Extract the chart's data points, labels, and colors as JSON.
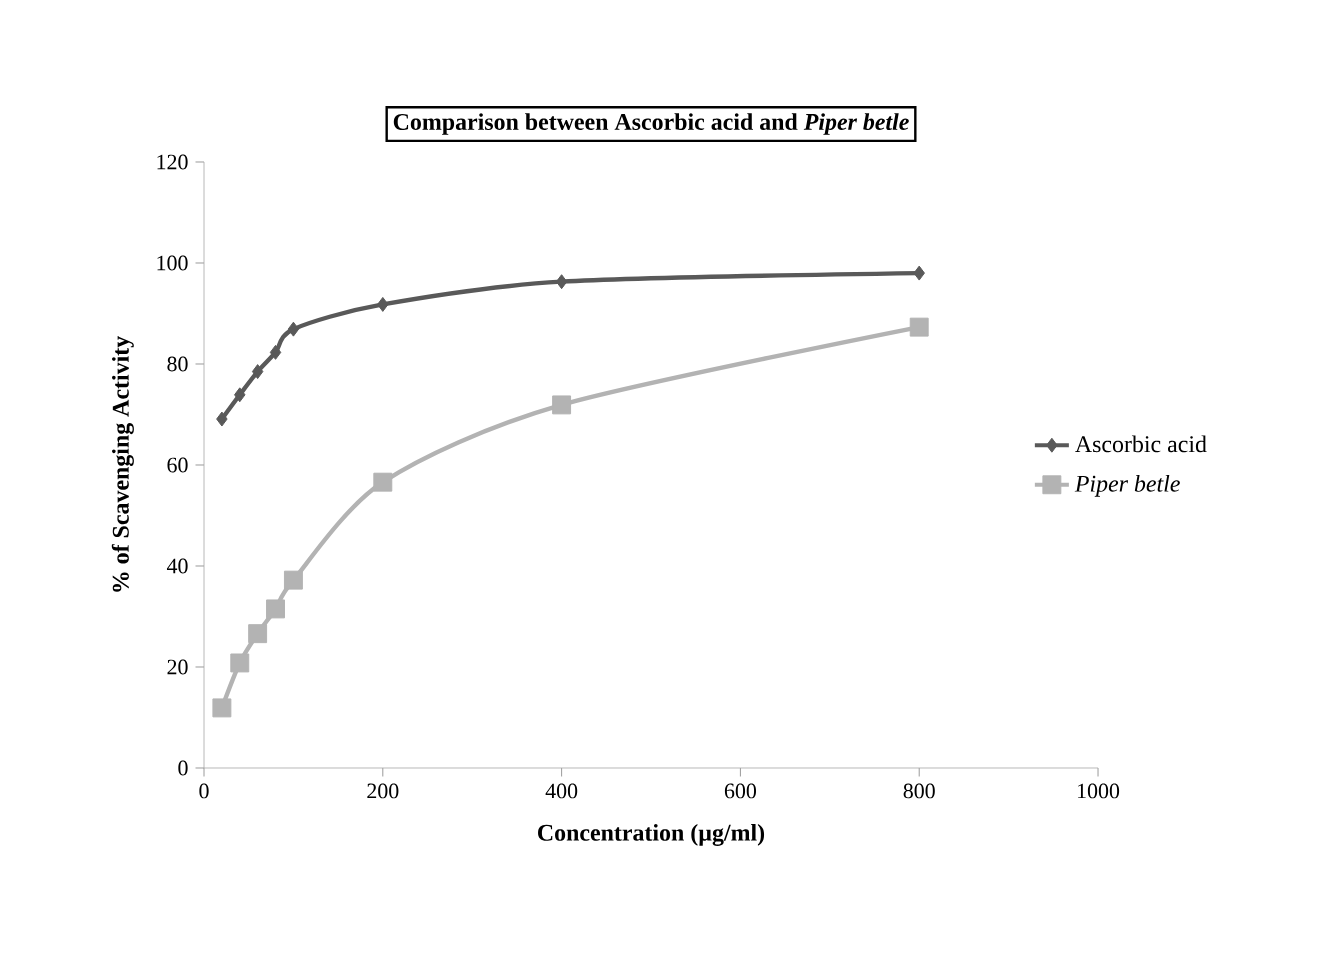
{
  "chart_data": {
    "type": "line",
    "title": "Comparison between Ascorbic acid and *Piper betle*",
    "xlabel": "Concentration (µg/ml)",
    "ylabel": "% of Scavenging Activity",
    "x": [
      20,
      40,
      60,
      80,
      100,
      200,
      400,
      800
    ],
    "series": [
      {
        "name": "Ascorbic acid",
        "color": "#595959",
        "marker": "diamond",
        "values": [
          69.1,
          73.9,
          78.5,
          82.3,
          86.9,
          91.8,
          96.3,
          98.0
        ]
      },
      {
        "name": "*Piper betle*",
        "color": "#b3b3b3",
        "marker": "square",
        "values": [
          11.9,
          20.8,
          26.6,
          31.5,
          37.2,
          56.6,
          71.9,
          87.3
        ]
      }
    ],
    "xlim": [
      0,
      1000
    ],
    "xticks": [
      0,
      200,
      400,
      600,
      800,
      1000
    ],
    "ylim": [
      0,
      120
    ],
    "yticks": [
      0,
      20,
      40,
      60,
      80,
      100,
      120
    ],
    "legend": "right",
    "grid": false,
    "line_style": "solid"
  }
}
